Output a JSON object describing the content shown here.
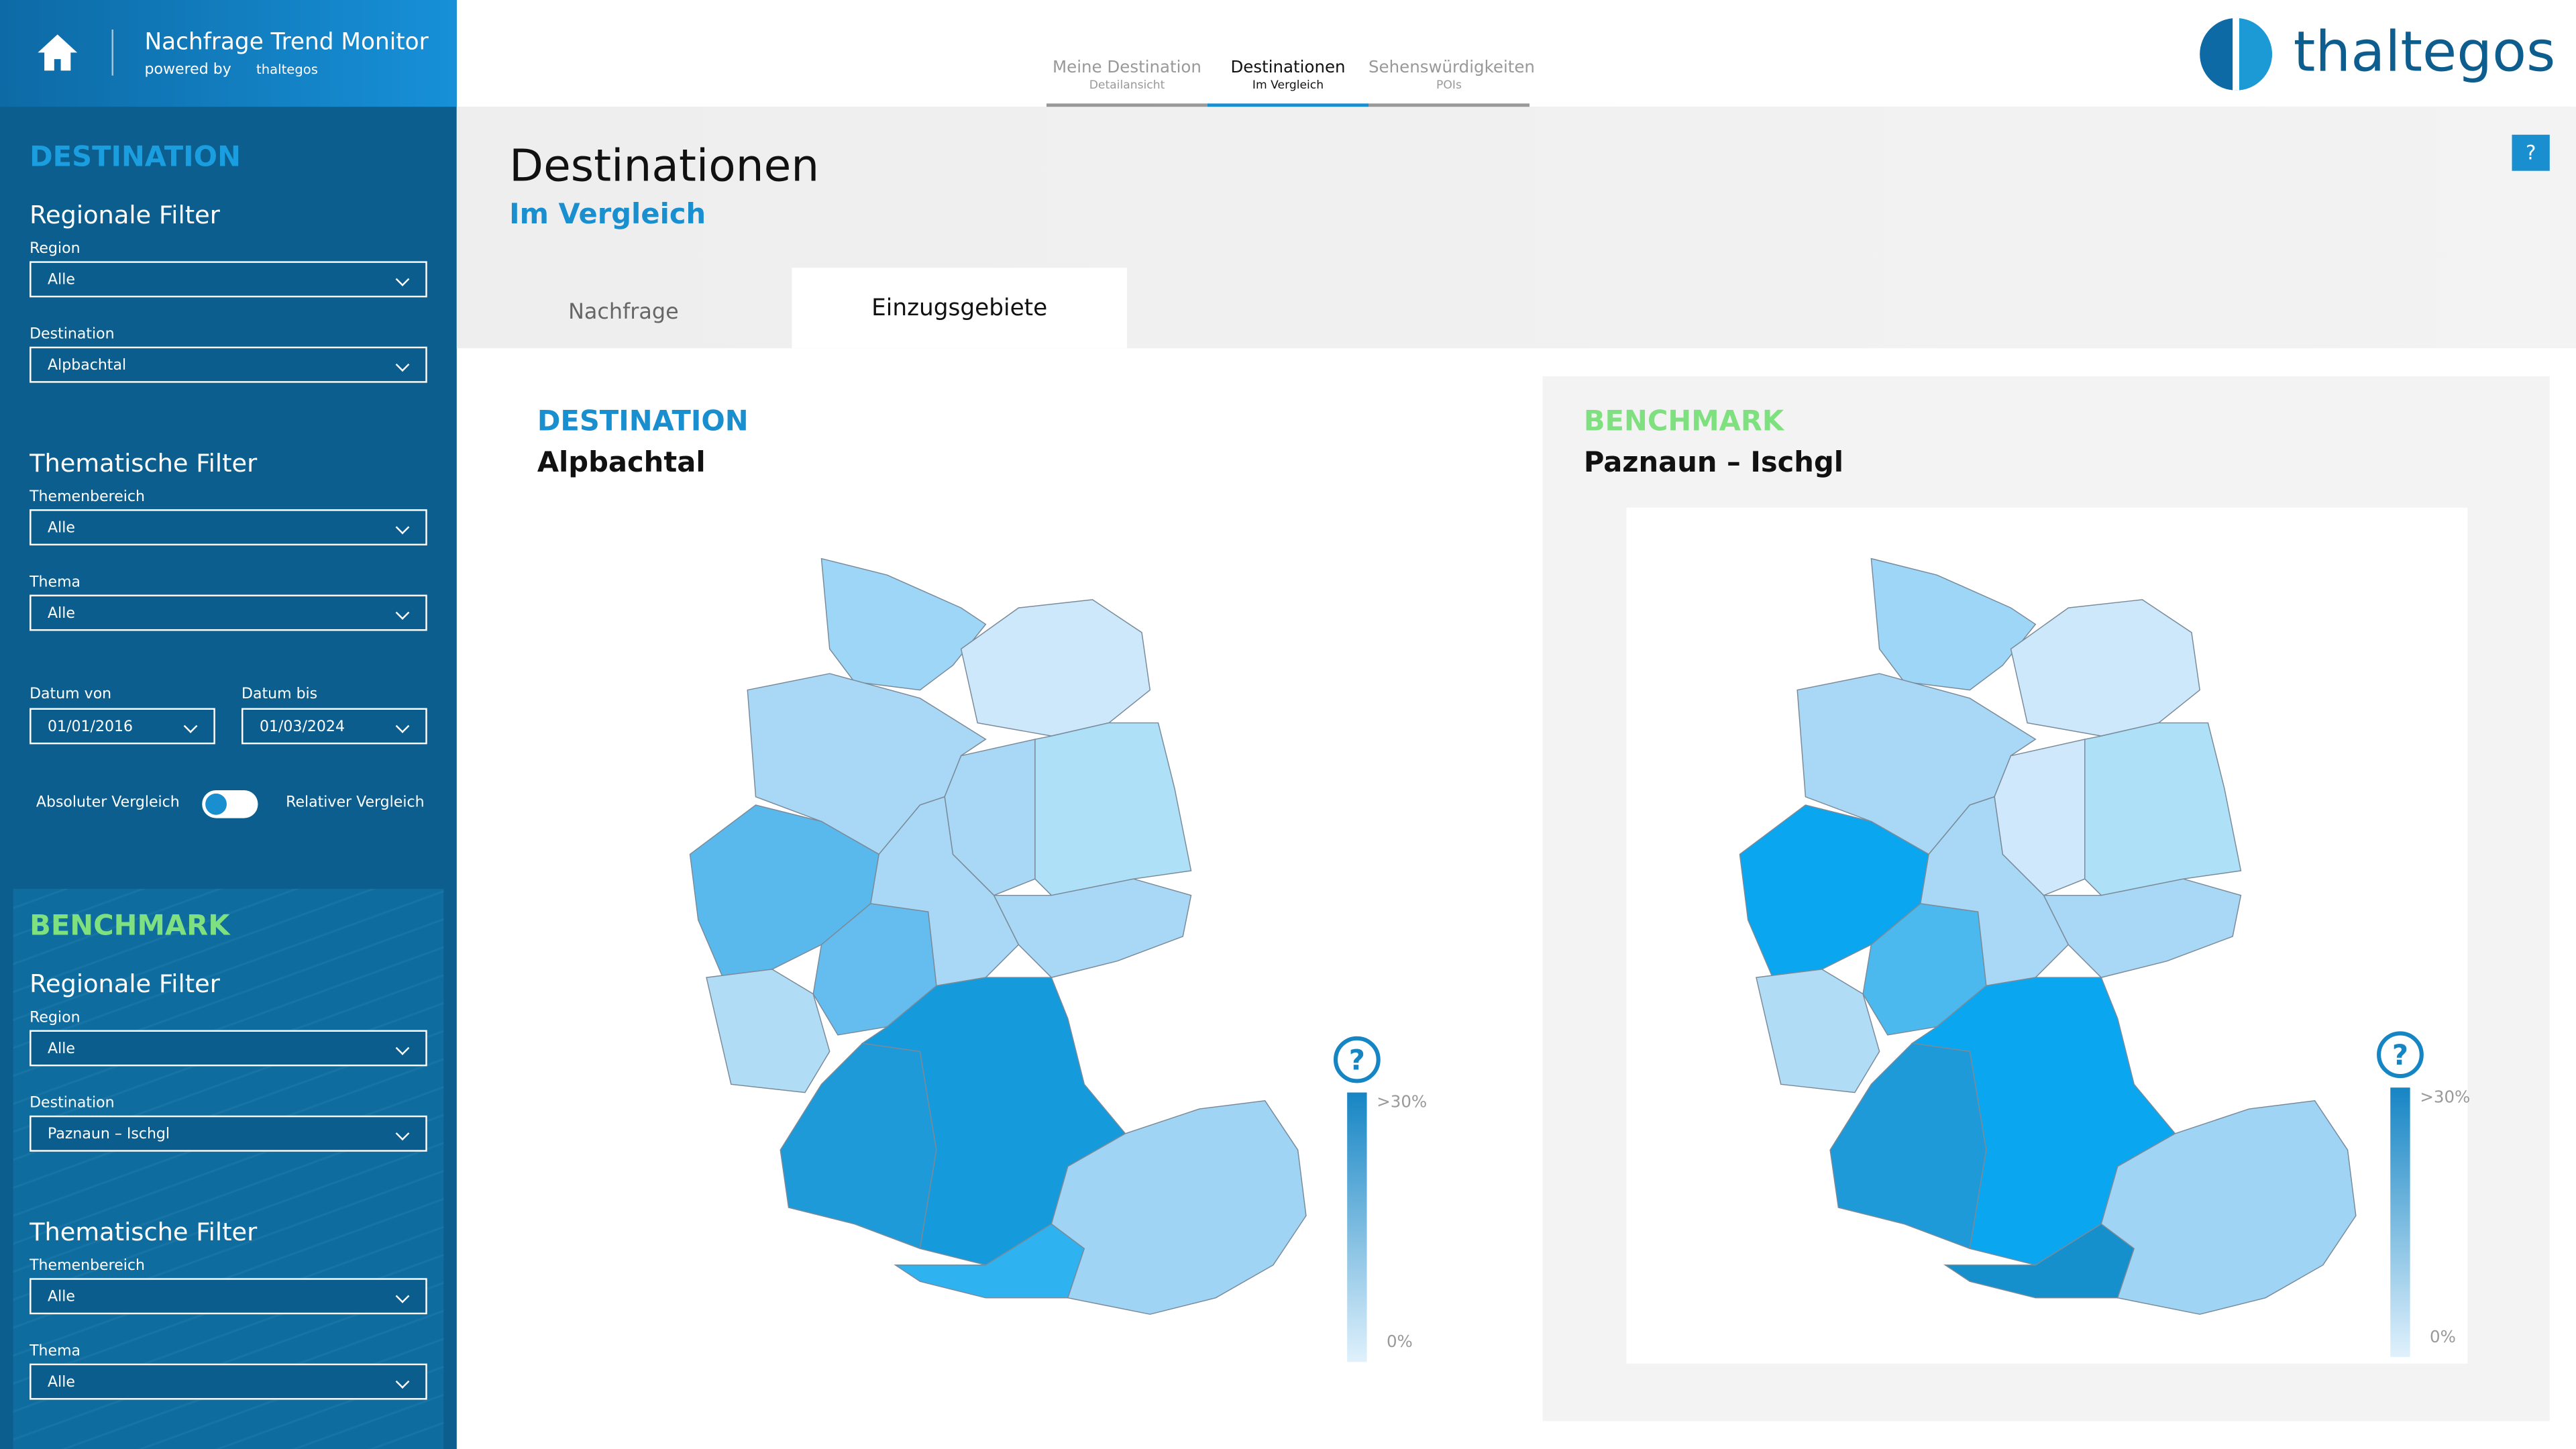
{
  "header": {
    "app_title": "Nachfrage Trend Monitor",
    "powered_by": "powered by",
    "brand_small": "thaltegos",
    "logo": "thaltegos"
  },
  "nav": {
    "tabs": [
      {
        "label": "Meine Destination",
        "sub": "Detailansicht"
      },
      {
        "label": "Destinationen",
        "sub": "Im Vergleich"
      },
      {
        "label": "Sehenswürdigkeiten",
        "sub": "POIs"
      }
    ]
  },
  "sidebar": {
    "destination": {
      "heading": "DESTINATION",
      "regional_title": "Regionale Filter",
      "region_label": "Region",
      "region_value": "Alle",
      "destination_label": "Destination",
      "destination_value": "Alpbachtal",
      "thematic_title": "Thematische Filter",
      "themenbereich_label": "Themenbereich",
      "themenbereich_value": "Alle",
      "thema_label": "Thema",
      "thema_value": "Alle",
      "date_from_label": "Datum von",
      "date_from": "01/01/2016",
      "date_to_label": "Datum bis",
      "date_to": "01/03/2024",
      "toggle_left": "Absoluter Vergleich",
      "toggle_right": "Relativer Vergleich"
    },
    "benchmark": {
      "heading": "BENCHMARK",
      "regional_title": "Regionale Filter",
      "region_label": "Region",
      "region_value": "Alle",
      "destination_label": "Destination",
      "destination_value": "Paznaun – Ischgl",
      "thematic_title": "Thematische Filter",
      "themenbereich_label": "Themenbereich",
      "themenbereich_value": "Alle",
      "thema_label": "Thema",
      "thema_value": "Alle"
    }
  },
  "page": {
    "title": "Destinationen",
    "subtitle": "Im Vergleich",
    "tabs": [
      "Nachfrage",
      "Einzugsgebiete"
    ]
  },
  "panels": [
    {
      "heading": "DESTINATION",
      "name": "Alpbachtal",
      "legend_max": ">30%",
      "legend_min": "0%"
    },
    {
      "heading": "BENCHMARK",
      "name": "Paznaun – Ischgl",
      "legend_max": ">30%",
      "legend_min": "0%"
    }
  ]
}
